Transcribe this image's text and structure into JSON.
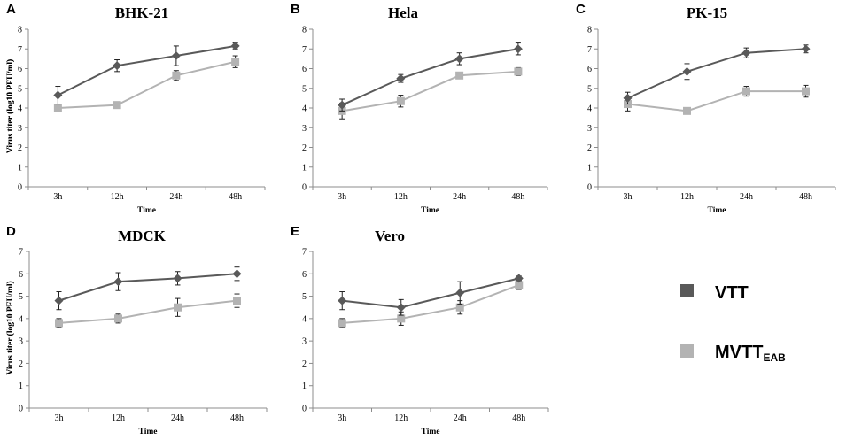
{
  "legend": {
    "items": [
      {
        "label": "VTT",
        "sub": "",
        "color": "#595959"
      },
      {
        "label": "MVTT",
        "sub": "EAB",
        "color": "#b3b3b3"
      }
    ]
  },
  "chart_data": [
    {
      "letter": "A",
      "type": "line",
      "title": "BHK-21",
      "xlabel": "Time",
      "ylabel": "Virus titer (log10 PFU/ml)",
      "categories": [
        "3h",
        "12h",
        "24h",
        "48h"
      ],
      "ylim": [
        0,
        8
      ],
      "series": [
        {
          "name": "VTT",
          "color": "#595959",
          "marker": "diamond",
          "values": [
            4.65,
            6.15,
            6.65,
            7.15
          ],
          "errors": [
            0.45,
            0.3,
            0.5,
            0.15
          ]
        },
        {
          "name": "MVTT",
          "color": "#b3b3b3",
          "marker": "square",
          "values": [
            4.0,
            4.15,
            5.65,
            6.35
          ],
          "errors": [
            0.2,
            0.15,
            0.25,
            0.3
          ]
        }
      ]
    },
    {
      "letter": "B",
      "type": "line",
      "title": "Hela",
      "xlabel": "Time",
      "ylabel": "Virus titer (log10 PFU/ml)",
      "categories": [
        "3h",
        "12h",
        "24h",
        "48h"
      ],
      "ylim": [
        0,
        8
      ],
      "series": [
        {
          "name": "VTT",
          "color": "#595959",
          "marker": "diamond",
          "values": [
            4.15,
            5.5,
            6.5,
            7.0
          ],
          "errors": [
            0.3,
            0.2,
            0.3,
            0.3
          ]
        },
        {
          "name": "MVTT",
          "color": "#b3b3b3",
          "marker": "square",
          "values": [
            3.85,
            4.35,
            5.65,
            5.85
          ],
          "errors": [
            0.4,
            0.3,
            0.15,
            0.2
          ]
        }
      ]
    },
    {
      "letter": "C",
      "type": "line",
      "title": "PK-15",
      "xlabel": "Time",
      "ylabel": "Virus titer (log10 PFU/ml)",
      "categories": [
        "3h",
        "12h",
        "24h",
        "48h"
      ],
      "ylim": [
        0,
        8
      ],
      "series": [
        {
          "name": "VTT",
          "color": "#595959",
          "marker": "diamond",
          "values": [
            4.5,
            5.85,
            6.8,
            7.0
          ],
          "errors": [
            0.3,
            0.4,
            0.25,
            0.2
          ]
        },
        {
          "name": "MVTT",
          "color": "#b3b3b3",
          "marker": "square",
          "values": [
            4.2,
            3.85,
            4.85,
            4.85
          ],
          "errors": [
            0.35,
            0.1,
            0.25,
            0.3
          ]
        }
      ]
    },
    {
      "letter": "D",
      "type": "line",
      "title": "MDCK",
      "xlabel": "Time",
      "ylabel": "Virus titer (log10 PFU/ml)",
      "categories": [
        "3h",
        "12h",
        "24h",
        "48h"
      ],
      "ylim": [
        0,
        7
      ],
      "series": [
        {
          "name": "VTT",
          "color": "#595959",
          "marker": "diamond",
          "values": [
            4.8,
            5.65,
            5.8,
            6.0
          ],
          "errors": [
            0.4,
            0.4,
            0.3,
            0.3
          ]
        },
        {
          "name": "MVTT",
          "color": "#b3b3b3",
          "marker": "square",
          "values": [
            3.8,
            4.0,
            4.5,
            4.8
          ],
          "errors": [
            0.2,
            0.2,
            0.4,
            0.3
          ]
        }
      ]
    },
    {
      "letter": "E",
      "type": "line",
      "title": "Vero",
      "xlabel": "Time",
      "ylabel": "Virus titer (log10 PFU/ml)",
      "categories": [
        "3h",
        "12h",
        "24h",
        "48h"
      ],
      "ylim": [
        0,
        7
      ],
      "series": [
        {
          "name": "VTT",
          "color": "#595959",
          "marker": "diamond",
          "values": [
            4.8,
            4.5,
            5.15,
            5.8
          ],
          "errors": [
            0.4,
            0.35,
            0.5,
            0.1
          ]
        },
        {
          "name": "MVTT",
          "color": "#b3b3b3",
          "marker": "square",
          "values": [
            3.8,
            4.0,
            4.5,
            5.5
          ],
          "errors": [
            0.2,
            0.3,
            0.3,
            0.2
          ]
        }
      ]
    }
  ]
}
